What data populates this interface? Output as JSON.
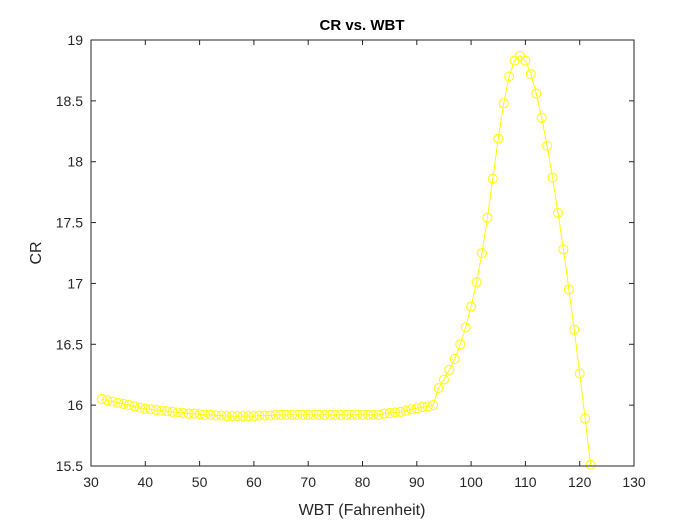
{
  "chart_data": {
    "type": "line",
    "title": "CR vs. WBT",
    "xlabel": "WBT (Fahrenheit)",
    "ylabel": "CR",
    "xlim": [
      30,
      130
    ],
    "ylim": [
      15.5,
      19
    ],
    "xticks": [
      "30",
      "40",
      "50",
      "60",
      "70",
      "80",
      "90",
      "100",
      "110",
      "120",
      "130"
    ],
    "yticks": [
      "15.5",
      "16",
      "16.5",
      "17",
      "17.5",
      "18",
      "18.5",
      "19"
    ],
    "grid": false,
    "marker": "circle",
    "series_color": "#FFFF00",
    "series": [
      {
        "x": [
          32,
          33,
          34,
          35,
          36,
          37,
          38,
          39,
          40,
          41,
          42,
          43,
          44,
          45,
          46,
          47,
          48,
          49,
          50,
          51,
          52,
          53,
          54,
          55,
          56,
          57,
          58,
          59,
          60,
          61,
          62,
          63,
          64,
          65,
          66,
          67,
          68,
          69,
          70,
          71,
          72,
          73,
          74,
          75,
          76,
          77,
          78,
          79,
          80,
          81,
          82,
          83,
          84,
          85,
          86,
          87,
          88,
          89,
          90,
          91,
          92,
          93,
          94,
          95,
          96,
          97,
          98,
          99,
          100,
          101,
          102,
          103,
          104,
          105,
          106,
          107,
          108,
          109,
          110,
          111,
          112,
          113,
          114,
          115,
          116,
          117,
          118,
          119,
          120,
          121,
          122
        ],
        "y": [
          16.05,
          16.04,
          16.03,
          16.02,
          16.01,
          16.0,
          15.99,
          15.98,
          15.97,
          15.965,
          15.96,
          15.955,
          15.95,
          15.945,
          15.94,
          15.935,
          15.93,
          15.93,
          15.925,
          15.92,
          15.92,
          15.915,
          15.915,
          15.91,
          15.91,
          15.91,
          15.91,
          15.91,
          15.91,
          15.915,
          15.915,
          15.915,
          15.92,
          15.92,
          15.92,
          15.92,
          15.92,
          15.92,
          15.92,
          15.92,
          15.92,
          15.92,
          15.92,
          15.92,
          15.92,
          15.92,
          15.92,
          15.92,
          15.92,
          15.92,
          15.92,
          15.92,
          15.93,
          15.935,
          15.94,
          15.945,
          15.955,
          15.965,
          15.975,
          15.985,
          15.99,
          16.0,
          16.14,
          16.21,
          16.29,
          16.38,
          16.5,
          16.64,
          16.81,
          17.01,
          17.25,
          17.54,
          17.86,
          18.19,
          18.48,
          18.7,
          18.83,
          18.87,
          18.83,
          18.72,
          18.56,
          18.36,
          18.13,
          17.87,
          17.58,
          17.28,
          16.95,
          16.62,
          16.26,
          15.89,
          15.51
        ]
      }
    ]
  }
}
